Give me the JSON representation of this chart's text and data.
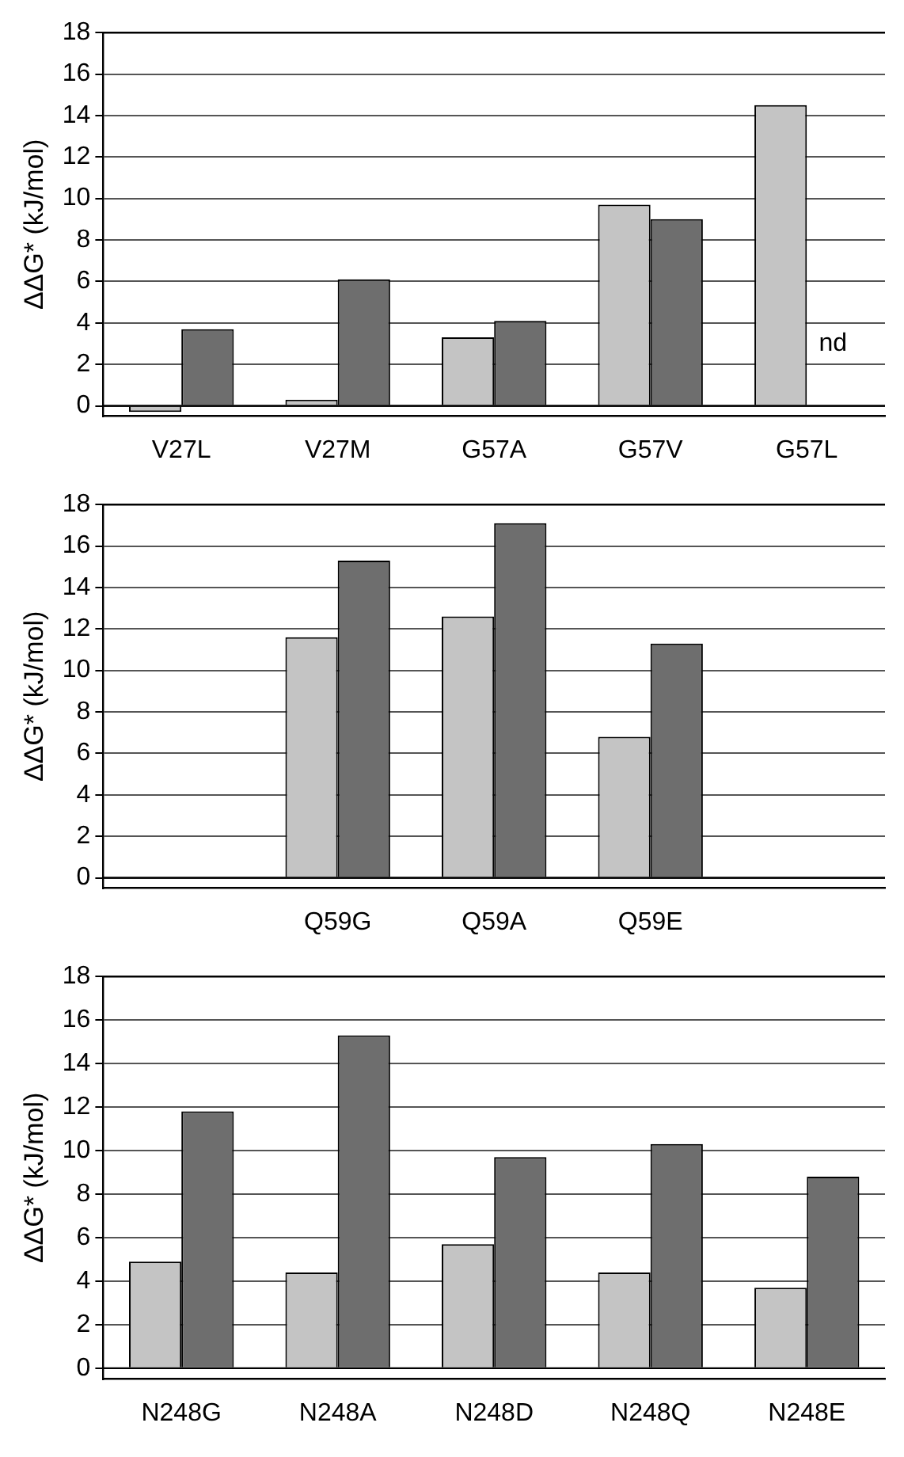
{
  "chart_data": [
    {
      "type": "bar",
      "ylabel": "ΔΔG* (kJ/mol)",
      "categories": [
        "V27L",
        "V27M",
        "G57A",
        "G57V",
        "G57L"
      ],
      "series": [
        {
          "color": "#c4c4c4",
          "values": [
            -0.3,
            0.3,
            3.3,
            9.7,
            14.5
          ]
        },
        {
          "color": "#6e6e6e",
          "values": [
            3.7,
            6.1,
            4.1,
            9.0,
            null
          ]
        }
      ],
      "ylim": [
        -0.5,
        18
      ],
      "yticks": [
        0,
        2,
        4,
        6,
        8,
        10,
        12,
        14,
        16,
        18
      ],
      "grid": "y",
      "annotations": [
        {
          "text": "nd",
          "x": "G57L",
          "y": 3
        }
      ]
    },
    {
      "type": "bar",
      "ylabel": "ΔΔG* (kJ/mol)",
      "categories": [
        null,
        "Q59G",
        "Q59A",
        "Q59E",
        null
      ],
      "series": [
        {
          "color": "#c4c4c4",
          "values": [
            null,
            11.6,
            12.6,
            6.8,
            null
          ]
        },
        {
          "color": "#6e6e6e",
          "values": [
            null,
            15.3,
            17.1,
            11.3,
            null
          ]
        }
      ],
      "ylim": [
        -0.5,
        18
      ],
      "yticks": [
        0,
        2,
        4,
        6,
        8,
        10,
        12,
        14,
        16,
        18
      ],
      "grid": "y"
    },
    {
      "type": "bar",
      "ylabel": "ΔΔG* (kJ/mol)",
      "categories": [
        "N248G",
        "N248A",
        "N248D",
        "N248Q",
        "N248E"
      ],
      "series": [
        {
          "color": "#c4c4c4",
          "values": [
            4.9,
            4.4,
            5.7,
            4.4,
            3.7
          ]
        },
        {
          "color": "#6e6e6e",
          "values": [
            11.8,
            15.3,
            9.7,
            10.3,
            8.8
          ]
        }
      ],
      "ylim": [
        -0.5,
        18
      ],
      "yticks": [
        0,
        2,
        4,
        6,
        8,
        10,
        12,
        14,
        16,
        18
      ],
      "grid": "y"
    }
  ]
}
